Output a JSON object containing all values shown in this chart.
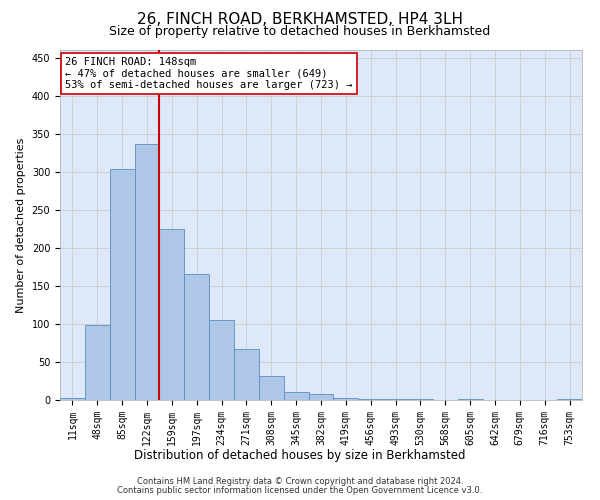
{
  "title": "26, FINCH ROAD, BERKHAMSTED, HP4 3LH",
  "subtitle": "Size of property relative to detached houses in Berkhamsted",
  "xlabel": "Distribution of detached houses by size in Berkhamsted",
  "ylabel": "Number of detached properties",
  "footer_line1": "Contains HM Land Registry data © Crown copyright and database right 2024.",
  "footer_line2": "Contains public sector information licensed under the Open Government Licence v3.0.",
  "bin_labels": [
    "11sqm",
    "48sqm",
    "85sqm",
    "122sqm",
    "159sqm",
    "197sqm",
    "234sqm",
    "271sqm",
    "308sqm",
    "345sqm",
    "382sqm",
    "419sqm",
    "456sqm",
    "493sqm",
    "530sqm",
    "568sqm",
    "605sqm",
    "642sqm",
    "679sqm",
    "716sqm",
    "753sqm"
  ],
  "bar_heights": [
    2,
    98,
    303,
    337,
    225,
    165,
    105,
    67,
    31,
    10,
    8,
    3,
    1,
    1,
    1,
    0,
    1,
    0,
    0,
    0,
    1
  ],
  "bar_color": "#aec6e8",
  "bar_edge_color": "#5a8fc0",
  "vline_x": 3.47,
  "vline_color": "#cc0000",
  "annotation_text": "26 FINCH ROAD: 148sqm\n← 47% of detached houses are smaller (649)\n53% of semi-detached houses are larger (723) →",
  "annotation_box_color": "#ffffff",
  "annotation_box_edge": "#cc0000",
  "annotation_fontsize": 7.5,
  "ylim": [
    0,
    460
  ],
  "yticks": [
    0,
    50,
    100,
    150,
    200,
    250,
    300,
    350,
    400,
    450
  ],
  "grid_color": "#cccccc",
  "background_color": "#dde8f8",
  "title_fontsize": 11,
  "subtitle_fontsize": 9,
  "tick_fontsize": 7,
  "ylabel_fontsize": 8,
  "xlabel_fontsize": 8.5,
  "footer_fontsize": 6
}
